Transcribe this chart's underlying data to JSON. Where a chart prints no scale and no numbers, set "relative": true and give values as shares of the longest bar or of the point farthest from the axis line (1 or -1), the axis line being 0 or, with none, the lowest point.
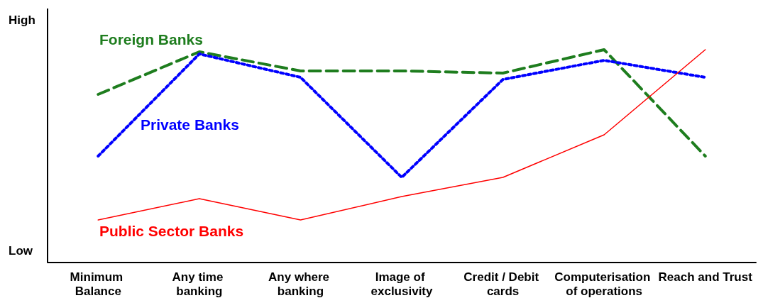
{
  "chart_data": {
    "type": "line",
    "relative": true,
    "categories": [
      "Minimum Balance",
      "Any time banking",
      "Any where banking",
      "Image of exclusivity",
      "Credit / Debit cards",
      "Computerisation of operations",
      "Reach and Trust"
    ],
    "annotations": [
      "High",
      "Low"
    ],
    "legend": false,
    "marker": "none",
    "series": [
      {
        "name": "Foreign Banks",
        "color": "#1e7d1e",
        "line_style": "dashed",
        "values": [
          0.79,
          0.99,
          0.9,
          0.9,
          0.89,
          1,
          0.5
        ]
      },
      {
        "name": "Private Banks",
        "color": "#0000ff",
        "line_style": "dotted",
        "values": [
          0.5,
          0.98,
          0.87,
          0.4,
          0.86,
          0.95,
          0.87
        ]
      },
      {
        "name": "Public Sector Banks",
        "color": "#ff0000",
        "line_style": "solid",
        "values": [
          0.2,
          0.3,
          0.2,
          0.31,
          0.4,
          0.6,
          1
        ]
      }
    ]
  }
}
